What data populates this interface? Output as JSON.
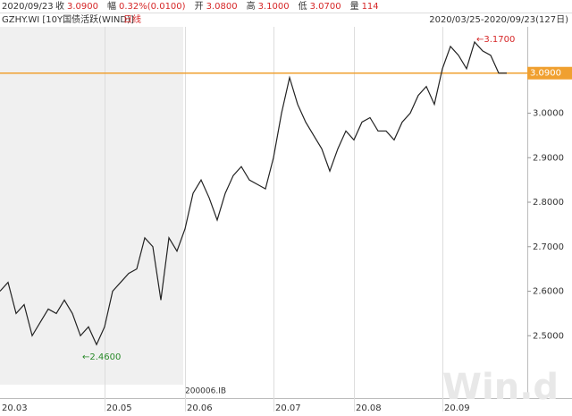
{
  "header": {
    "date": "2020/09/23",
    "fields": [
      {
        "label": "收",
        "value": "3.0900"
      },
      {
        "label": "幅",
        "value": "0.32%(0.0100)"
      },
      {
        "label": "开",
        "value": "3.0800"
      },
      {
        "label": "高",
        "value": "3.1000"
      },
      {
        "label": "低",
        "value": "3.0700"
      },
      {
        "label": "量",
        "value": "114"
      }
    ],
    "instrument": "GZHY.WI [10Y国债活跃(WIND)]",
    "period": "日线",
    "range": "2020/03/25-2020/09/23(127日)"
  },
  "chart_data": {
    "type": "line",
    "color": "#222222",
    "categories": [
      "20.03",
      null,
      null,
      null,
      null,
      null,
      null,
      null,
      null,
      null,
      null,
      null,
      null,
      "20.05",
      null,
      null,
      null,
      null,
      null,
      null,
      null,
      null,
      null,
      "20.06",
      null,
      null,
      null,
      null,
      null,
      null,
      null,
      null,
      null,
      null,
      "20.07",
      null,
      null,
      null,
      null,
      null,
      null,
      null,
      null,
      null,
      "20.08",
      null,
      null,
      null,
      null,
      null,
      null,
      null,
      null,
      null,
      null,
      "20.09",
      null,
      null,
      null,
      null,
      null,
      null,
      null,
      null
    ],
    "values": [
      2.6,
      2.62,
      2.55,
      2.57,
      2.5,
      2.53,
      2.56,
      2.55,
      2.58,
      2.55,
      2.5,
      2.52,
      2.48,
      2.52,
      2.6,
      2.62,
      2.64,
      2.65,
      2.72,
      2.7,
      2.58,
      2.72,
      2.69,
      2.74,
      2.82,
      2.85,
      2.81,
      2.76,
      2.82,
      2.86,
      2.88,
      2.85,
      2.84,
      2.83,
      2.9,
      3.0,
      3.08,
      3.02,
      2.98,
      2.95,
      2.92,
      2.87,
      2.92,
      2.96,
      2.94,
      2.98,
      2.99,
      2.96,
      2.96,
      2.94,
      2.98,
      3.0,
      3.04,
      3.06,
      3.02,
      3.1,
      3.15,
      3.13,
      3.1,
      3.16,
      3.14,
      3.13,
      3.09,
      3.09
    ],
    "ylim": [
      2.39,
      3.194
    ],
    "yticks": [
      {
        "value": 2.5,
        "label": "2.5000"
      },
      {
        "value": 2.6,
        "label": "2.6000"
      },
      {
        "value": 2.7,
        "label": "2.7000"
      },
      {
        "value": 2.8,
        "label": "2.8000"
      },
      {
        "value": 2.9,
        "label": "2.9000"
      },
      {
        "value": 3.0,
        "label": "3.0000"
      }
    ],
    "high": {
      "value": 3.17,
      "label": "←3.1700"
    },
    "low": {
      "value": 2.46,
      "label": "←2.4600"
    },
    "last": {
      "value": 3.09,
      "label": "3.0900",
      "color": "#f0a030"
    },
    "code": "200006.IB",
    "watermark": "Win.d"
  }
}
